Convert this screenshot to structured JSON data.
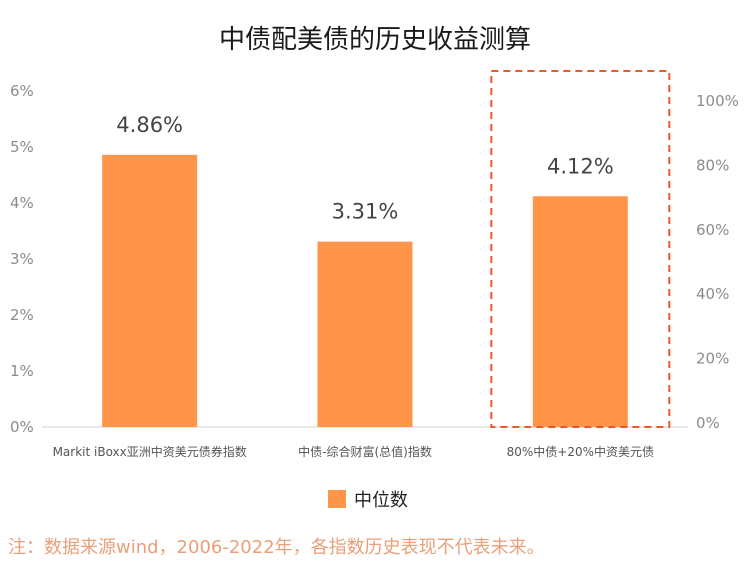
{
  "chart_data": {
    "type": "bar",
    "title": "中债配美债的历史收益测算",
    "categories": [
      "Markit iBoxx亚洲中资美元债券指数",
      "中债-综合财富(总值)指数",
      "80%中债+20%中资美元债"
    ],
    "series": [
      {
        "name": "中位数",
        "values": [
          4.86,
          3.31,
          4.12
        ],
        "labels": [
          "4.86%",
          "3.31%",
          "4.12%"
        ]
      }
    ],
    "y_left": {
      "ylim": [
        0,
        6
      ],
      "ticks": [
        "0%",
        "1%",
        "2%",
        "3%",
        "4%",
        "5%",
        "6%"
      ]
    },
    "y_right": {
      "ylim": [
        0,
        100
      ],
      "ticks": [
        "0%",
        "20%",
        "40%",
        "60%",
        "80%",
        "100%"
      ]
    },
    "highlight": {
      "category_index": 2,
      "style": "dashed"
    },
    "legend": "bottom",
    "grid": false
  },
  "note": "注：数据来源wind，2006-2022年，各指数历史表现不代表未来。",
  "colors": {
    "bar": "#FF9548",
    "highlight": "#E85A2C",
    "axis": "#d0d0d0"
  }
}
